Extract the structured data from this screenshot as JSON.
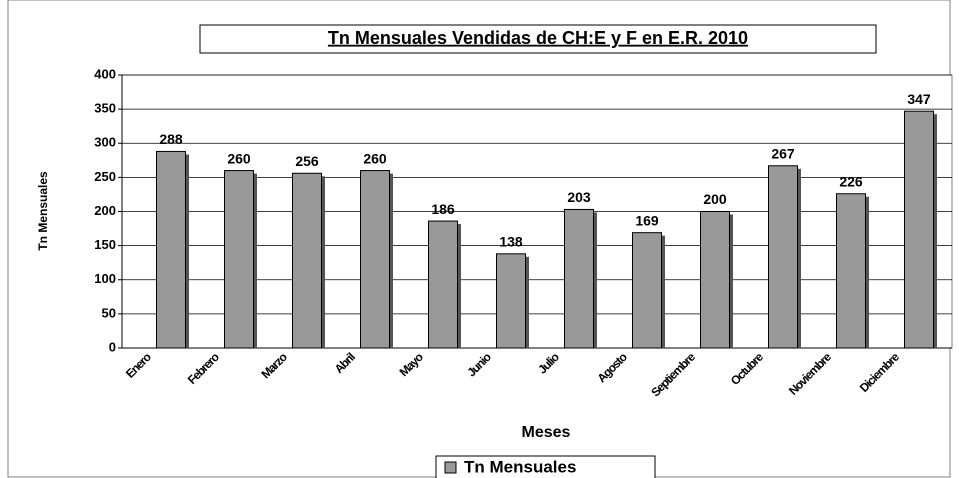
{
  "chart_data": {
    "type": "bar",
    "title": "Tn Mensuales Vendidas de CH:E y F en E.R. 2010",
    "categories": [
      "Enero",
      "Febrero",
      "Marzo",
      "Abril",
      "Mayo",
      "Junio",
      "Julio",
      "Agosto",
      "Septiembre",
      "Octubre",
      "Noviembre",
      "Diciembre"
    ],
    "series": [
      {
        "name": "Tn Mensuales",
        "color": "#999999",
        "values": [
          288,
          260,
          256,
          260,
          186,
          138,
          203,
          169,
          200,
          267,
          226,
          347
        ]
      }
    ],
    "x_label": "Meses",
    "y_label": "Tn Mensuales",
    "ylim": [
      0,
      400
    ],
    "yticks": [
      0,
      50,
      100,
      150,
      200,
      250,
      300,
      350,
      400
    ],
    "grid": true,
    "legend": "bottom"
  }
}
